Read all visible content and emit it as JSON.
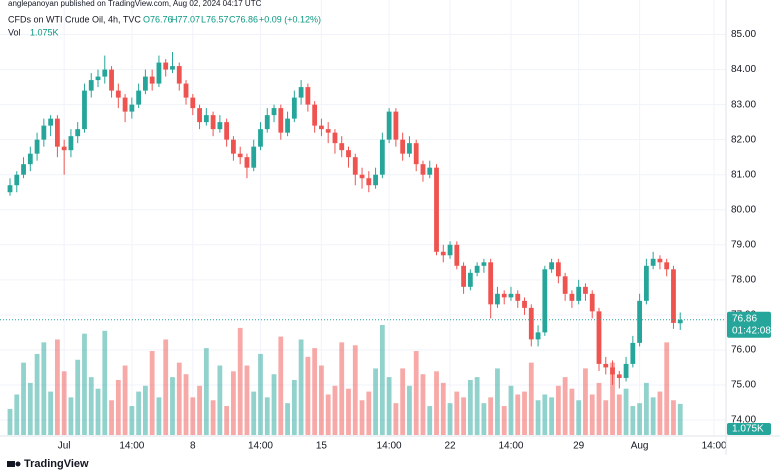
{
  "chart_data": {
    "type": "candlestick",
    "header": "anglepanoyan published on TradingView.com, Aug 02, 2024 04:17 UTC",
    "symbol": "CFDs on WTI Crude Oil, 4h, TVC",
    "legend_values": [
      "O76.76",
      "H77.07",
      "L76.57",
      "C76.86",
      "+0.09 (+0.12%)"
    ],
    "volume_title": "Vol",
    "volume_label": "1.075K",
    "last_price": 76.86,
    "countdown": "01:42:08",
    "brand": "TradingView",
    "up_color": "#26a69a",
    "down_color": "#ef5350",
    "grid": true,
    "ylim": [
      73.6,
      85.7
    ],
    "yticks": [
      {
        "value": 74,
        "label": "74.00"
      },
      {
        "value": 75,
        "label": "75.00"
      },
      {
        "value": 76,
        "label": "76.00"
      },
      {
        "value": 77,
        "label": "77.00"
      },
      {
        "value": 78,
        "label": "78.00"
      },
      {
        "value": 79,
        "label": "79.00"
      },
      {
        "value": 80,
        "label": "80.00"
      },
      {
        "value": 81,
        "label": "81.00"
      },
      {
        "value": 82,
        "label": "82.00"
      },
      {
        "value": 83,
        "label": "83.00"
      },
      {
        "value": 84,
        "label": "84.00"
      },
      {
        "value": 85,
        "label": "85.00"
      }
    ],
    "categories": [
      null,
      null,
      null,
      null,
      null,
      null,
      null,
      null,
      "Jul",
      null,
      null,
      null,
      null,
      null,
      null,
      null,
      null,
      null,
      "14:00",
      null,
      null,
      null,
      null,
      null,
      null,
      null,
      null,
      "8",
      null,
      null,
      null,
      null,
      null,
      null,
      null,
      null,
      null,
      "14:00",
      null,
      null,
      null,
      null,
      null,
      null,
      null,
      null,
      "15",
      null,
      null,
      null,
      null,
      null,
      null,
      null,
      null,
      null,
      "14:00",
      null,
      null,
      null,
      null,
      null,
      null,
      null,
      null,
      "22",
      null,
      null,
      null,
      null,
      null,
      null,
      null,
      null,
      "14:00",
      null,
      null,
      null,
      null,
      null,
      null,
      null,
      null,
      null,
      "29",
      null,
      null,
      null,
      null,
      null,
      null,
      null,
      null,
      "Aug",
      null,
      null,
      null,
      null,
      null,
      null,
      null,
      null,
      null,
      null,
      "14:00",
      null
    ],
    "ohlc": [
      [
        80.5,
        80.9,
        80.4,
        80.7
      ],
      [
        80.7,
        81.1,
        80.5,
        81.0
      ],
      [
        81.0,
        81.5,
        80.9,
        81.3
      ],
      [
        81.3,
        81.8,
        81.1,
        81.6
      ],
      [
        81.6,
        82.2,
        81.4,
        82.0
      ],
      [
        82.0,
        82.6,
        81.8,
        82.4
      ],
      [
        82.4,
        82.7,
        82.1,
        82.6
      ],
      [
        82.6,
        82.7,
        81.5,
        81.8
      ],
      [
        81.8,
        82.0,
        81.0,
        81.7
      ],
      [
        81.7,
        82.3,
        81.5,
        82.1
      ],
      [
        82.1,
        82.5,
        81.9,
        82.3
      ],
      [
        82.3,
        83.6,
        82.2,
        83.4
      ],
      [
        83.4,
        83.9,
        83.2,
        83.7
      ],
      [
        83.7,
        84.0,
        83.5,
        83.8
      ],
      [
        83.8,
        84.4,
        83.6,
        84.0
      ],
      [
        84.0,
        84.1,
        83.2,
        83.4
      ],
      [
        83.4,
        83.6,
        82.9,
        83.2
      ],
      [
        83.2,
        83.3,
        82.5,
        82.8
      ],
      [
        82.8,
        83.2,
        82.6,
        83.0
      ],
      [
        83.0,
        83.6,
        82.9,
        83.4
      ],
      [
        83.4,
        84.0,
        83.3,
        83.8
      ],
      [
        83.8,
        84.0,
        83.4,
        83.6
      ],
      [
        83.6,
        84.4,
        83.5,
        84.2
      ],
      [
        84.2,
        84.3,
        83.8,
        84.0
      ],
      [
        84.0,
        84.5,
        83.9,
        84.1
      ],
      [
        84.1,
        84.2,
        83.4,
        83.6
      ],
      [
        83.6,
        83.7,
        83.0,
        83.2
      ],
      [
        83.2,
        83.3,
        82.7,
        82.9
      ],
      [
        82.9,
        83.0,
        82.3,
        82.5
      ],
      [
        82.5,
        82.9,
        82.4,
        82.7
      ],
      [
        82.7,
        82.8,
        82.1,
        82.3
      ],
      [
        82.3,
        82.7,
        82.2,
        82.5
      ],
      [
        82.5,
        82.6,
        81.8,
        82.0
      ],
      [
        82.0,
        82.1,
        81.4,
        81.6
      ],
      [
        81.6,
        81.8,
        81.3,
        81.5
      ],
      [
        81.5,
        81.6,
        80.9,
        81.2
      ],
      [
        81.2,
        82.0,
        81.1,
        81.8
      ],
      [
        81.8,
        82.5,
        81.7,
        82.3
      ],
      [
        82.3,
        82.9,
        82.2,
        82.7
      ],
      [
        82.7,
        83.0,
        82.5,
        82.9
      ],
      [
        82.9,
        83.0,
        82.0,
        82.2
      ],
      [
        82.2,
        82.8,
        82.1,
        82.6
      ],
      [
        82.6,
        83.4,
        82.5,
        83.2
      ],
      [
        83.2,
        83.7,
        83.0,
        83.5
      ],
      [
        83.5,
        83.6,
        82.8,
        83.0
      ],
      [
        83.0,
        83.1,
        82.2,
        82.4
      ],
      [
        82.4,
        82.6,
        82.1,
        82.3
      ],
      [
        82.3,
        82.5,
        81.9,
        82.2
      ],
      [
        82.2,
        82.3,
        81.6,
        81.9
      ],
      [
        81.9,
        82.1,
        81.5,
        81.7
      ],
      [
        81.7,
        81.8,
        81.2,
        81.5
      ],
      [
        81.5,
        81.6,
        80.7,
        81.0
      ],
      [
        81.0,
        81.2,
        80.6,
        80.9
      ],
      [
        80.9,
        81.1,
        80.5,
        80.7
      ],
      [
        80.7,
        81.2,
        80.6,
        81.0
      ],
      [
        81.0,
        82.2,
        80.9,
        82.0
      ],
      [
        82.0,
        82.9,
        81.9,
        82.8
      ],
      [
        82.8,
        82.9,
        81.8,
        82.0
      ],
      [
        82.0,
        82.2,
        81.4,
        81.6
      ],
      [
        81.6,
        82.1,
        81.5,
        81.9
      ],
      [
        81.9,
        82.0,
        81.1,
        81.3
      ],
      [
        81.3,
        81.4,
        80.8,
        81.0
      ],
      [
        81.0,
        81.4,
        80.9,
        81.2
      ],
      [
        81.2,
        81.3,
        78.7,
        78.8
      ],
      [
        78.8,
        79.0,
        78.5,
        78.7
      ],
      [
        78.7,
        79.1,
        78.6,
        79.0
      ],
      [
        79.0,
        79.1,
        78.3,
        78.4
      ],
      [
        78.4,
        78.5,
        77.6,
        77.8
      ],
      [
        77.8,
        78.3,
        77.7,
        78.2
      ],
      [
        78.2,
        78.5,
        78.1,
        78.4
      ],
      [
        78.4,
        78.6,
        78.2,
        78.5
      ],
      [
        78.5,
        78.6,
        76.9,
        77.3
      ],
      [
        77.3,
        77.8,
        77.2,
        77.6
      ],
      [
        77.6,
        77.7,
        77.3,
        77.5
      ],
      [
        77.5,
        77.8,
        77.4,
        77.6
      ],
      [
        77.6,
        77.7,
        77.2,
        77.4
      ],
      [
        77.4,
        77.5,
        77.0,
        77.2
      ],
      [
        77.2,
        77.3,
        76.1,
        76.3
      ],
      [
        76.3,
        76.7,
        76.1,
        76.5
      ],
      [
        76.5,
        78.4,
        76.4,
        78.3
      ],
      [
        78.3,
        78.6,
        78.2,
        78.5
      ],
      [
        78.5,
        78.6,
        77.9,
        78.1
      ],
      [
        78.1,
        78.2,
        77.4,
        77.6
      ],
      [
        77.6,
        77.7,
        77.2,
        77.4
      ],
      [
        77.4,
        78.0,
        77.3,
        77.8
      ],
      [
        77.8,
        77.9,
        77.4,
        77.6
      ],
      [
        77.6,
        77.7,
        76.9,
        77.1
      ],
      [
        77.1,
        77.2,
        75.4,
        75.6
      ],
      [
        75.6,
        75.8,
        75.3,
        75.5
      ],
      [
        75.5,
        75.7,
        75.0,
        75.3
      ],
      [
        75.3,
        75.4,
        74.9,
        75.2
      ],
      [
        75.2,
        75.8,
        75.1,
        75.6
      ],
      [
        75.6,
        76.4,
        75.5,
        76.2
      ],
      [
        76.2,
        77.6,
        76.1,
        77.4
      ],
      [
        77.4,
        78.6,
        77.3,
        78.4
      ],
      [
        78.4,
        78.8,
        78.3,
        78.6
      ],
      [
        78.6,
        78.7,
        78.3,
        78.5
      ],
      [
        78.5,
        78.6,
        78.1,
        78.3
      ],
      [
        78.3,
        78.4,
        76.6,
        76.77
      ],
      [
        76.76,
        77.07,
        76.57,
        76.86
      ],
      null,
      null,
      null,
      null,
      null,
      null
    ],
    "volume": [
      900,
      1400,
      2500,
      1800,
      2800,
      3200,
      1500,
      3300,
      2200,
      1300,
      2600,
      3500,
      2000,
      1600,
      3600,
      1200,
      1900,
      2400,
      1000,
      1500,
      1700,
      2900,
      1300,
      3300,
      2000,
      2500,
      2100,
      1300,
      1700,
      3000,
      1200,
      2400,
      1000,
      2200,
      3700,
      2400,
      1500,
      2800,
      1300,
      2100,
      3400,
      1100,
      1900,
      3300,
      2700,
      3000,
      2400,
      1400,
      1700,
      3200,
      1600,
      3100,
      1200,
      1500,
      2300,
      3800,
      2000,
      1100,
      2300,
      1700,
      2900,
      2100,
      1000,
      2200,
      1800,
      1100,
      1500,
      1300,
      1900,
      2000,
      1100,
      1300,
      2300,
      1000,
      1700,
      1400,
      1500,
      2500,
      1200,
      1400,
      1300,
      1700,
      2000,
      1600,
      1200,
      2300,
      1400,
      1800,
      1200,
      2500,
      1400,
      1600,
      1000,
      1100,
      1800,
      1300,
      1500,
      3200,
      1200,
      1075,
      null,
      null,
      null,
      null,
      null,
      null
    ]
  }
}
